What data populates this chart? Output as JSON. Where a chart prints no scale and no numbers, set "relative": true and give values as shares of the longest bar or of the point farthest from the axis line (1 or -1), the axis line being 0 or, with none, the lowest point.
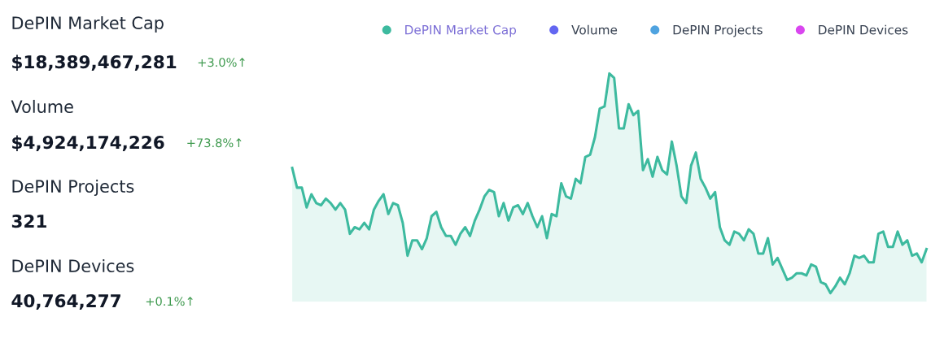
{
  "chart_data": [
    {
      "type": "other",
      "annotations": [
        "DePIN Market Cap",
        "$18,389,467,281",
        "+3.0%↑",
        "Volume",
        "$4,924,174,226",
        "+73.8%↑",
        "DePIN Projects",
        "321",
        "DePIN Devices",
        "40,764,277",
        "+0.1%↑"
      ]
    },
    {
      "type": "area",
      "relative": true,
      "legend": "top",
      "categories": [
        null,
        null,
        null,
        null,
        null,
        null,
        null,
        null,
        null,
        null,
        null,
        null,
        null,
        null,
        null,
        null,
        null,
        null,
        null,
        null,
        null,
        null,
        null,
        null,
        null,
        null,
        null,
        null,
        null,
        null,
        null,
        null,
        null,
        null,
        null,
        null,
        null,
        null,
        null,
        null,
        null,
        null,
        null,
        null,
        null,
        null,
        null,
        null,
        null,
        null,
        null,
        null,
        null,
        null,
        null,
        null,
        null,
        null,
        null,
        null,
        null,
        null,
        null,
        null,
        null,
        null,
        null,
        null,
        null,
        null,
        null,
        null,
        null,
        null,
        null,
        null,
        null,
        null,
        null,
        null,
        null,
        null,
        null,
        null,
        null,
        null,
        null,
        null,
        null,
        null,
        null,
        null,
        null,
        null,
        null,
        null,
        null,
        null,
        null,
        null,
        null,
        null,
        null,
        null,
        null,
        null,
        null,
        null,
        null,
        null,
        null,
        null,
        null,
        null,
        null,
        null,
        null,
        null,
        null,
        null,
        null,
        null,
        null,
        null,
        null,
        null,
        null,
        null,
        null,
        null,
        null,
        null,
        null
      ],
      "series": [
        {
          "name": "DePIN Market Cap",
          "color": "#3dba9f",
          "values": [
            0.57,
            0.48,
            0.48,
            0.39,
            0.45,
            0.41,
            0.4,
            0.43,
            0.41,
            0.38,
            0.41,
            0.38,
            0.27,
            0.3,
            0.29,
            0.32,
            0.29,
            0.38,
            0.42,
            0.45,
            0.36,
            0.41,
            0.4,
            0.32,
            0.17,
            0.24,
            0.24,
            0.2,
            0.25,
            0.35,
            0.37,
            0.3,
            0.26,
            0.26,
            0.22,
            0.27,
            0.3,
            0.26,
            0.33,
            0.38,
            0.44,
            0.47,
            0.46,
            0.35,
            0.41,
            0.33,
            0.39,
            0.4,
            0.36,
            0.41,
            0.35,
            0.3,
            0.35,
            0.25,
            0.36,
            0.35,
            0.5,
            0.44,
            0.43,
            0.52,
            0.5,
            0.62,
            0.63,
            0.71,
            0.84,
            0.85,
            1,
            0.98,
            0.75,
            0.75,
            0.86,
            0.81,
            0.83,
            0.56,
            0.61,
            0.53,
            0.62,
            0.56,
            0.54,
            0.69,
            0.58,
            0.44,
            0.41,
            0.58,
            0.64,
            0.52,
            0.48,
            0.43,
            0.46,
            0.3,
            0.24,
            0.22,
            0.28,
            0.27,
            0.24,
            0.29,
            0.27,
            0.18,
            0.18,
            0.25,
            0.13,
            0.16,
            0.11,
            0.06,
            0.07,
            0.09,
            0.09,
            0.08,
            0.13,
            0.12,
            0.05,
            0.04,
            0,
            0.03,
            0.07,
            0.04,
            0.09,
            0.17,
            0.16,
            0.17,
            0.14,
            0.14,
            0.27,
            0.28,
            0.21,
            0.21,
            0.28,
            0.22,
            0.24,
            0.17,
            0.18,
            0.14,
            0.2
          ]
        },
        {
          "name": "Volume",
          "color": "#6366f1",
          "values": [
            null,
            null,
            null,
            null,
            null,
            null,
            null,
            null,
            null,
            null,
            null,
            null,
            null,
            null,
            null,
            null,
            null,
            null,
            null,
            null,
            null,
            null,
            null,
            null,
            null,
            null,
            null,
            null,
            null,
            null,
            null,
            null,
            null,
            null,
            null,
            null,
            null,
            null,
            null,
            null,
            null,
            null,
            null,
            null,
            null,
            null,
            null,
            null,
            null,
            null,
            null,
            null,
            null,
            null,
            null,
            null,
            null,
            null,
            null,
            null,
            null,
            null,
            null,
            null,
            null,
            null,
            null,
            null,
            null,
            null,
            null,
            null,
            null,
            null,
            null,
            null,
            null,
            null,
            null,
            null,
            null,
            null,
            null,
            null,
            null,
            null,
            null,
            null,
            null,
            null,
            null,
            null,
            null,
            null,
            null,
            null,
            null,
            null,
            null,
            null,
            null,
            null,
            null,
            null,
            null,
            null,
            null,
            null,
            null,
            null,
            null,
            null,
            null,
            null,
            null,
            null,
            null,
            null,
            null,
            null,
            null,
            null,
            null,
            null,
            null,
            null,
            null,
            null,
            null,
            null,
            null,
            null,
            null
          ]
        },
        {
          "name": "DePIN Projects",
          "color": "#4fa3e0",
          "values": [
            null,
            null,
            null,
            null,
            null,
            null,
            null,
            null,
            null,
            null,
            null,
            null,
            null,
            null,
            null,
            null,
            null,
            null,
            null,
            null,
            null,
            null,
            null,
            null,
            null,
            null,
            null,
            null,
            null,
            null,
            null,
            null,
            null,
            null,
            null,
            null,
            null,
            null,
            null,
            null,
            null,
            null,
            null,
            null,
            null,
            null,
            null,
            null,
            null,
            null,
            null,
            null,
            null,
            null,
            null,
            null,
            null,
            null,
            null,
            null,
            null,
            null,
            null,
            null,
            null,
            null,
            null,
            null,
            null,
            null,
            null,
            null,
            null,
            null,
            null,
            null,
            null,
            null,
            null,
            null,
            null,
            null,
            null,
            null,
            null,
            null,
            null,
            null,
            null,
            null,
            null,
            null,
            null,
            null,
            null,
            null,
            null,
            null,
            null,
            null,
            null,
            null,
            null,
            null,
            null,
            null,
            null,
            null,
            null,
            null,
            null,
            null,
            null,
            null,
            null,
            null,
            null,
            null,
            null,
            null,
            null,
            null,
            null,
            null,
            null,
            null,
            null,
            null,
            null,
            null,
            null,
            null,
            null
          ]
        },
        {
          "name": "DePIN Devices",
          "color": "#d946ef",
          "values": [
            null,
            null,
            null,
            null,
            null,
            null,
            null,
            null,
            null,
            null,
            null,
            null,
            null,
            null,
            null,
            null,
            null,
            null,
            null,
            null,
            null,
            null,
            null,
            null,
            null,
            null,
            null,
            null,
            null,
            null,
            null,
            null,
            null,
            null,
            null,
            null,
            null,
            null,
            null,
            null,
            null,
            null,
            null,
            null,
            null,
            null,
            null,
            null,
            null,
            null,
            null,
            null,
            null,
            null,
            null,
            null,
            null,
            null,
            null,
            null,
            null,
            null,
            null,
            null,
            null,
            null,
            null,
            null,
            null,
            null,
            null,
            null,
            null,
            null,
            null,
            null,
            null,
            null,
            null,
            null,
            null,
            null,
            null,
            null,
            null,
            null,
            null,
            null,
            null,
            null,
            null,
            null,
            null,
            null,
            null,
            null,
            null,
            null,
            null,
            null,
            null,
            null,
            null,
            null,
            null,
            null,
            null,
            null,
            null,
            null,
            null,
            null,
            null,
            null,
            null,
            null,
            null,
            null,
            null,
            null,
            null,
            null,
            null,
            null,
            null,
            null,
            null,
            null,
            null,
            null,
            null,
            null,
            null
          ]
        }
      ]
    }
  ]
}
